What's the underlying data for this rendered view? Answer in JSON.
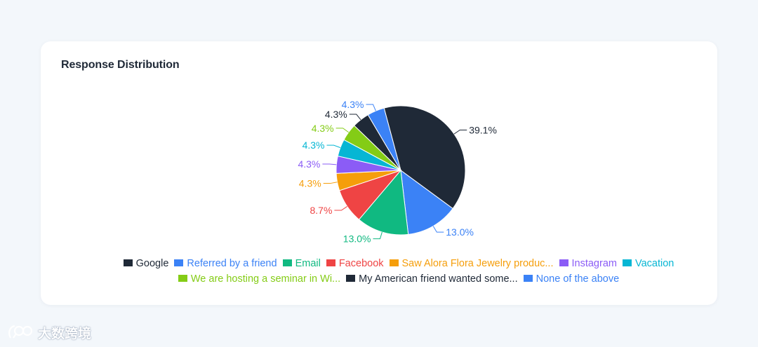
{
  "card": {
    "title": "Response Distribution"
  },
  "watermark": {
    "text": "大数跨境"
  },
  "chart_data": {
    "type": "pie",
    "title": "Response Distribution",
    "legend_position": "bottom",
    "slices": [
      {
        "label": "Google",
        "value": 39.1,
        "color": "#1f2937",
        "display": "39.1%"
      },
      {
        "label": "Referred by a friend",
        "value": 13.0,
        "color": "#3b82f6",
        "display": "13.0%"
      },
      {
        "label": "Email",
        "value": 13.0,
        "color": "#10b981",
        "display": "13.0%"
      },
      {
        "label": "Facebook",
        "value": 8.7,
        "color": "#ef4444",
        "display": "8.7%"
      },
      {
        "label": "Saw Alora Flora Jewelry produc...",
        "value": 4.3,
        "color": "#f59e0b",
        "display": "4.3%"
      },
      {
        "label": "Instagram",
        "value": 4.3,
        "color": "#8b5cf6",
        "display": "4.3%"
      },
      {
        "label": "Vacation",
        "value": 4.3,
        "color": "#06b6d4",
        "display": "4.3%"
      },
      {
        "label": "We are hosting a seminar in Wi...",
        "value": 4.3,
        "color": "#84cc16",
        "display": "4.3%"
      },
      {
        "label": "My American friend wanted some...",
        "value": 4.3,
        "color": "#1f2937",
        "display": "4.3%"
      },
      {
        "label": "None of the above",
        "value": 4.3,
        "color": "#3b82f6",
        "display": "4.3%"
      }
    ]
  }
}
